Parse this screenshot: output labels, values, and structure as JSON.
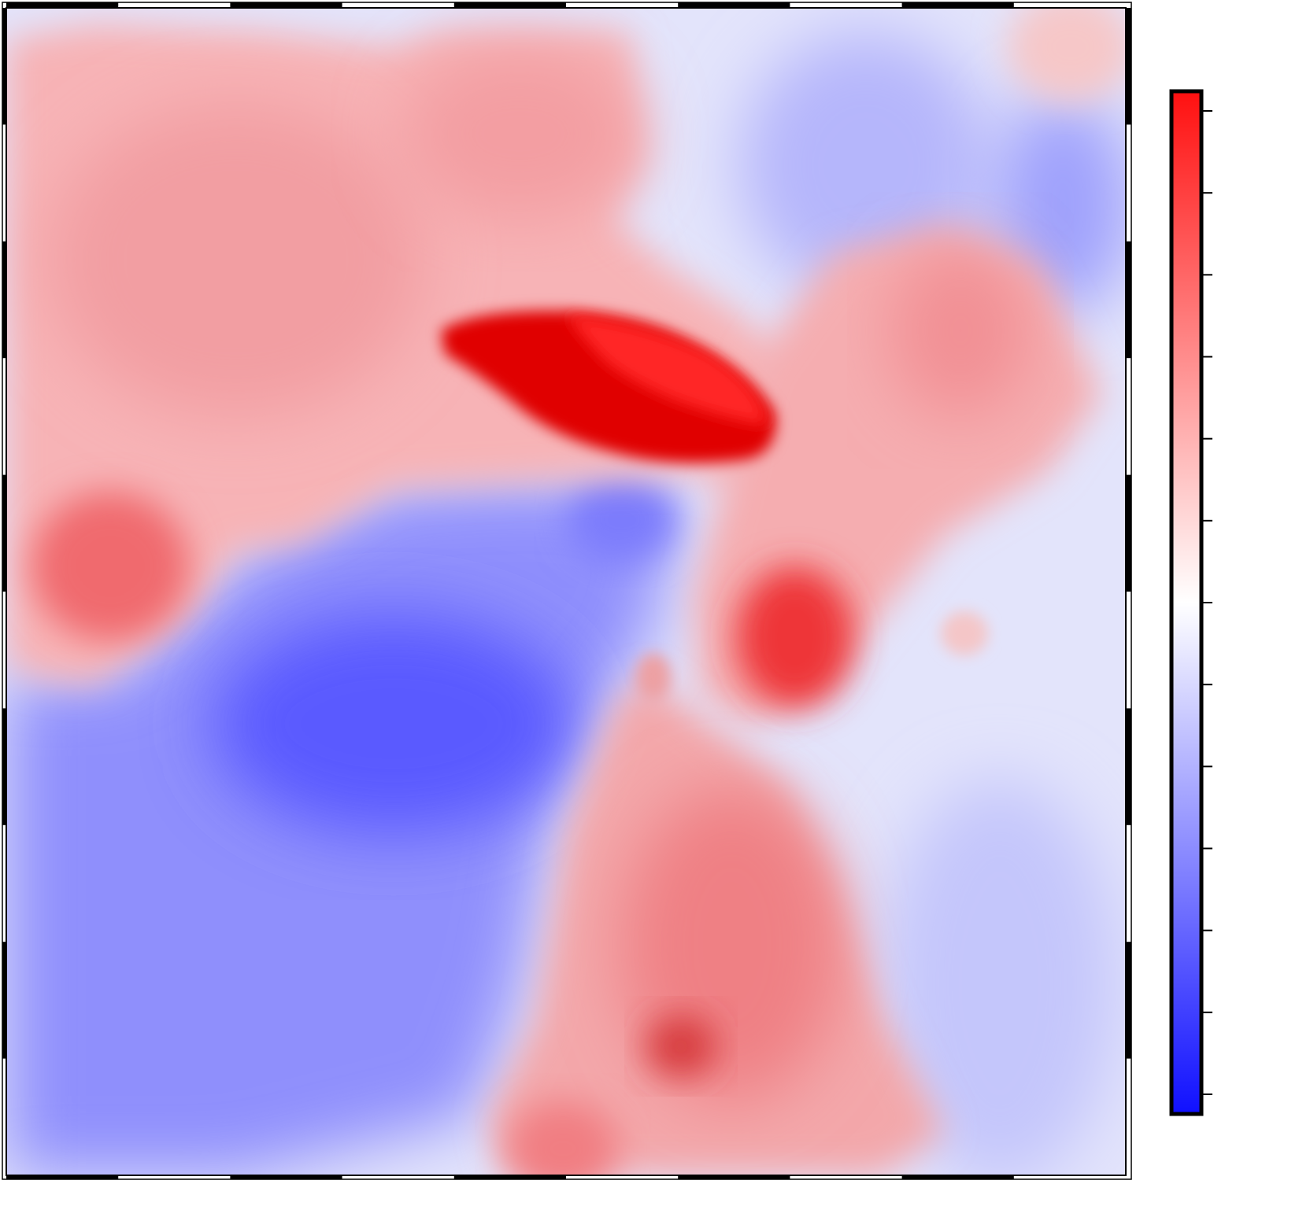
{
  "map": {
    "type": "heatmap",
    "colormap": [
      "#1010ff",
      "#ffffff",
      "#ff1010"
    ],
    "frame_color": "#000000",
    "background": "#ffffff",
    "frame_ticks_horizontal": 10,
    "frame_ticks_vertical": 10,
    "colorbar": {
      "orientation": "vertical",
      "placement": "right",
      "tick_count": 13,
      "tick_labels": []
    }
  }
}
